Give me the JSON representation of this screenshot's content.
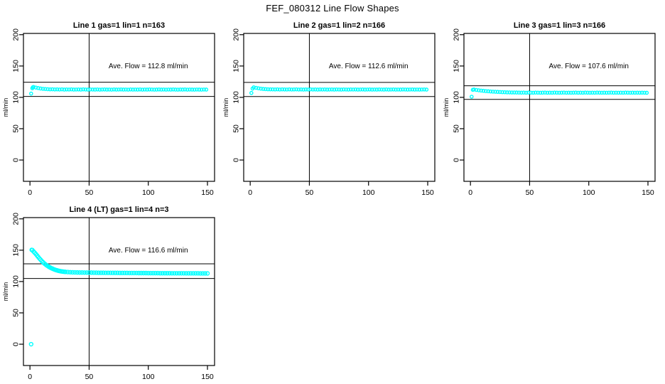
{
  "page": {
    "title": "FEF_080312  Line Flow Shapes",
    "background": "#ffffff"
  },
  "style": {
    "point_color": "#00ffff",
    "axis_color": "#000000",
    "text_color": "#000000"
  },
  "chart_data": [
    {
      "type": "scatter",
      "title": "Line 1 gas=1 lin=1 n=163",
      "annotation": "Ave. Flow =  112.8  ml/min",
      "ave_flow": 112.8,
      "ylabel": "ml/min",
      "xlabel": "",
      "x_ticks": [
        0,
        50,
        100,
        150
      ],
      "y_ticks": [
        0,
        50,
        100,
        150,
        200
      ],
      "xlim": [
        -5.5,
        156
      ],
      "ylim": [
        -34,
        202
      ],
      "grid": false,
      "legend": null,
      "vline_x": 50,
      "hlines": [
        124.1,
        101.5
      ],
      "series": {
        "x0": 3,
        "dx": 2,
        "y": [
          116.6,
          115.6,
          114.8,
          114.1,
          113.6,
          113.3,
          113.0,
          112.8,
          112.9,
          112.6,
          112.7,
          112.5,
          112.8,
          112.4,
          112.6,
          112.5,
          112.7,
          112.4,
          112.5,
          112.6,
          112.4,
          112.7,
          112.5,
          112.4,
          112.6,
          112.5,
          112.4,
          112.6,
          112.3,
          112.5,
          112.6,
          112.4,
          112.5,
          112.3,
          112.6,
          112.4,
          112.5,
          112.6,
          112.4,
          112.5,
          112.3,
          112.6,
          112.4,
          112.5,
          112.4,
          112.6,
          112.3,
          112.5,
          112.4,
          112.6,
          112.5,
          112.3,
          112.4,
          112.6,
          112.4,
          112.5,
          112.3,
          112.5,
          112.4,
          112.6,
          112.4,
          112.3,
          112.5,
          112.4,
          112.6,
          112.3,
          112.5,
          112.4,
          112.3,
          112.5,
          112.4,
          112.3,
          112.5,
          112.4
        ]
      },
      "extra_points": [
        [
          1,
          106.0
        ],
        [
          2,
          114.5
        ],
        [
          2.5,
          116.2
        ]
      ],
      "point_radius": 2.1
    },
    {
      "type": "scatter",
      "title": "Line 2 gas=1 lin=2 n=166",
      "annotation": "Ave. Flow =  112.6  ml/min",
      "ave_flow": 112.6,
      "ylabel": "ml/min",
      "xlabel": "",
      "x_ticks": [
        0,
        50,
        100,
        150
      ],
      "y_ticks": [
        0,
        50,
        100,
        150,
        200
      ],
      "xlim": [
        -5.5,
        156
      ],
      "ylim": [
        -34,
        202
      ],
      "grid": false,
      "legend": null,
      "vline_x": 50,
      "hlines": [
        123.9,
        101.3
      ],
      "series": {
        "x0": 3,
        "dx": 2,
        "y": [
          116.0,
          115.2,
          114.5,
          113.9,
          113.4,
          113.1,
          112.9,
          112.8,
          112.7,
          112.6,
          112.8,
          112.5,
          112.7,
          112.6,
          112.5,
          112.7,
          112.5,
          112.6,
          112.7,
          112.5,
          112.6,
          112.4,
          112.6,
          112.5,
          112.7,
          112.5,
          112.6,
          112.4,
          112.6,
          112.5,
          112.6,
          112.4,
          112.5,
          112.6,
          112.4,
          112.6,
          112.5,
          112.4,
          112.6,
          112.5,
          112.4,
          112.6,
          112.5,
          112.6,
          112.4,
          112.5,
          112.6,
          112.4,
          112.5,
          112.6,
          112.4,
          112.5,
          112.4,
          112.6,
          112.5,
          112.4,
          112.6,
          112.4,
          112.5,
          112.6,
          112.4,
          112.5,
          112.4,
          112.6,
          112.5,
          112.4,
          112.5,
          112.6,
          112.4,
          112.5,
          112.4,
          112.5,
          112.6,
          112.4
        ]
      },
      "extra_points": [
        [
          1,
          107.0
        ],
        [
          2,
          114.0
        ]
      ],
      "point_radius": 2.1
    },
    {
      "type": "scatter",
      "title": "Line 3 gas=1 lin=3 n=166",
      "annotation": "Ave. Flow =  107.6  ml/min",
      "ave_flow": 107.6,
      "ylabel": "ml/min",
      "xlabel": "",
      "x_ticks": [
        0,
        50,
        100,
        150
      ],
      "y_ticks": [
        0,
        50,
        100,
        150,
        200
      ],
      "xlim": [
        -5.5,
        156
      ],
      "ylim": [
        -34,
        202
      ],
      "grid": false,
      "legend": null,
      "vline_x": 50,
      "hlines": [
        118.4,
        96.8
      ],
      "series": {
        "x0": 3,
        "dx": 2,
        "y": [
          112.5,
          111.8,
          111.3,
          110.8,
          110.4,
          110.0,
          109.7,
          109.4,
          109.1,
          108.9,
          108.7,
          108.5,
          108.3,
          108.2,
          108.0,
          107.9,
          107.8,
          107.8,
          107.7,
          107.6,
          107.5,
          107.6,
          107.4,
          107.6,
          107.5,
          107.4,
          107.6,
          107.5,
          107.4,
          107.5,
          107.6,
          107.4,
          107.5,
          107.4,
          107.6,
          107.5,
          107.4,
          107.5,
          107.6,
          107.4,
          107.5,
          107.4,
          107.5,
          107.6,
          107.4,
          107.5,
          107.4,
          107.6,
          107.5,
          107.4,
          107.5,
          107.4,
          107.6,
          107.5,
          107.4,
          107.5,
          107.4,
          107.5,
          107.6,
          107.4,
          107.5,
          107.4,
          107.5,
          107.4,
          107.6,
          107.5,
          107.4,
          107.5,
          107.4,
          107.5,
          107.4,
          107.5,
          107.4,
          107.3
        ]
      },
      "extra_points": [
        [
          1,
          101.0
        ],
        [
          2,
          112.0
        ]
      ],
      "point_radius": 2.1
    },
    {
      "type": "scatter",
      "title": "Line 4 (LT) gas=1 lin=4 n=3",
      "annotation": "Ave. Flow =  116.6  ml/min",
      "ave_flow": 116.6,
      "ylabel": "ml/min",
      "xlabel": "",
      "x_ticks": [
        0,
        50,
        100,
        150
      ],
      "y_ticks": [
        0,
        50,
        100,
        150,
        200
      ],
      "xlim": [
        -5.5,
        156
      ],
      "ylim": [
        -34,
        202
      ],
      "grid": false,
      "legend": null,
      "vline_x": 50,
      "hlines": [
        128.3,
        104.9
      ],
      "series": {
        "x0": 2,
        "dx": 2,
        "y": [
          150.2,
          146.0,
          141.5,
          136.8,
          132.6,
          129.0,
          126.0,
          123.5,
          121.4,
          119.7,
          118.3,
          117.2,
          116.4,
          115.8,
          115.4,
          115.1,
          114.9,
          114.7,
          114.6,
          114.5,
          114.4,
          114.4,
          114.3,
          114.3,
          114.2,
          114.2,
          114.1,
          114.1,
          114.0,
          114.0,
          114.0,
          113.9,
          113.9,
          113.9,
          113.8,
          113.8,
          113.8,
          113.7,
          113.7,
          113.7,
          113.7,
          113.6,
          113.6,
          113.6,
          113.6,
          113.5,
          113.5,
          113.5,
          113.5,
          113.4,
          113.4,
          113.4,
          113.4,
          113.4,
          113.3,
          113.3,
          113.3,
          113.3,
          113.3,
          113.2,
          113.2,
          113.2,
          113.2,
          113.2,
          113.2,
          113.1,
          113.1,
          113.1,
          113.1,
          113.1,
          113.1,
          113.0,
          113.0,
          113.0,
          113.0
        ]
      },
      "extra_points": [
        [
          1,
          0.0
        ],
        [
          1.5,
          150.5
        ],
        [
          3,
          148.0
        ],
        [
          5,
          143.8
        ],
        [
          7,
          139.2
        ],
        [
          9,
          134.8
        ],
        [
          11,
          130.8
        ],
        [
          13,
          127.5
        ],
        [
          15,
          124.8
        ],
        [
          17,
          122.5
        ],
        [
          19,
          120.6
        ],
        [
          21,
          119.0
        ],
        [
          23,
          117.8
        ],
        [
          25,
          116.8
        ],
        [
          27,
          116.1
        ],
        [
          29,
          115.6
        ]
      ],
      "point_radius": 2.5
    }
  ]
}
